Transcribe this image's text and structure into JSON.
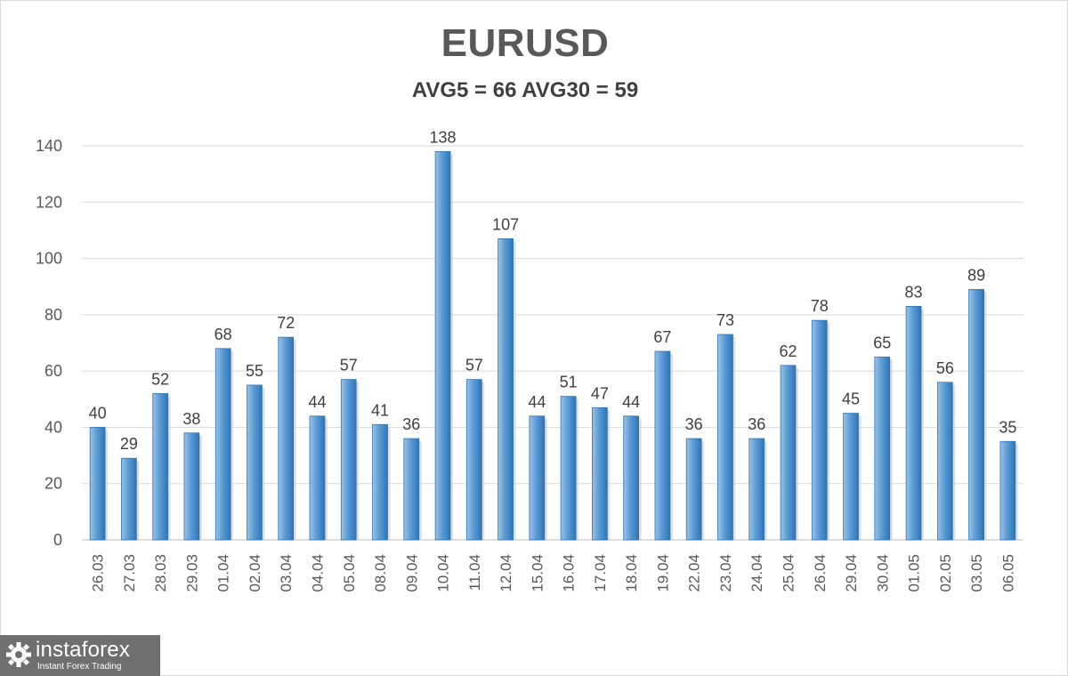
{
  "chart_data": {
    "type": "bar",
    "title": "EURUSD",
    "subtitle": "AVG5 = 66 AVG30 = 59",
    "categories": [
      "26.03",
      "27.03",
      "28.03",
      "29.03",
      "01.04",
      "02.04",
      "03.04",
      "04.04",
      "05.04",
      "08.04",
      "09.04",
      "10.04",
      "11.04",
      "12.04",
      "15.04",
      "16.04",
      "17.04",
      "18.04",
      "19.04",
      "22.04",
      "23.04",
      "24.04",
      "25.04",
      "26.04",
      "29.04",
      "30.04",
      "01.05",
      "02.05",
      "03.05",
      "06.05"
    ],
    "values": [
      40,
      29,
      52,
      38,
      68,
      55,
      72,
      44,
      57,
      41,
      36,
      138,
      57,
      107,
      44,
      51,
      47,
      44,
      67,
      36,
      73,
      36,
      62,
      78,
      45,
      65,
      83,
      56,
      89,
      35
    ],
    "ylim": [
      0,
      140
    ],
    "yticks": [
      0,
      20,
      40,
      60,
      80,
      100,
      120,
      140
    ],
    "grid": true,
    "bar_color": "#5b9bd5"
  },
  "logo": {
    "name": "instaforex",
    "tagline": "Instant Forex Trading"
  }
}
